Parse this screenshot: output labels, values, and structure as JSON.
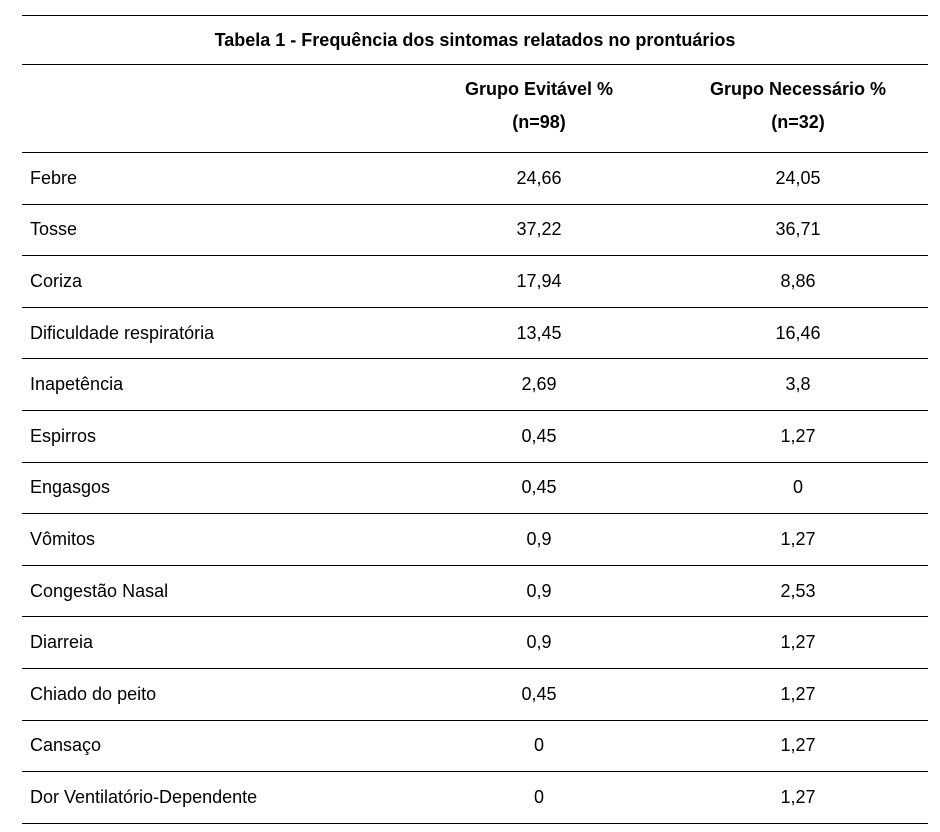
{
  "table": {
    "title": "Tabela 1 - Frequência dos sintomas relatados no prontuários",
    "headers": {
      "group_a_line1": "Grupo Evitável %",
      "group_a_line2": "(n=98)",
      "group_b_line1": "Grupo Necessário %",
      "group_b_line2": "(n=32)"
    },
    "rows": [
      {
        "symptom": "Febre",
        "a": "24,66",
        "b": "24,05"
      },
      {
        "symptom": "Tosse",
        "a": "37,22",
        "b": "36,71"
      },
      {
        "symptom": "Coriza",
        "a": "17,94",
        "b": "8,86"
      },
      {
        "symptom": "Dificuldade respiratória",
        "a": "13,45",
        "b": "16,46"
      },
      {
        "symptom": "Inapetência",
        "a": "2,69",
        "b": "3,8"
      },
      {
        "symptom": "Espirros",
        "a": "0,45",
        "b": "1,27"
      },
      {
        "symptom": "Engasgos",
        "a": "0,45",
        "b": "0"
      },
      {
        "symptom": "Vômitos",
        "a": "0,9",
        "b": "1,27"
      },
      {
        "symptom": "Congestão Nasal",
        "a": "0,9",
        "b": "2,53"
      },
      {
        "symptom": "Diarreia",
        "a": "0,9",
        "b": "1,27"
      },
      {
        "symptom": "Chiado do peito",
        "a": "0,45",
        "b": "1,27"
      },
      {
        "symptom": "Cansaço",
        "a": "0",
        "b": "1,27"
      },
      {
        "symptom": "Dor Ventilatório-Dependente",
        "a": "0",
        "b": "1,27"
      }
    ]
  }
}
